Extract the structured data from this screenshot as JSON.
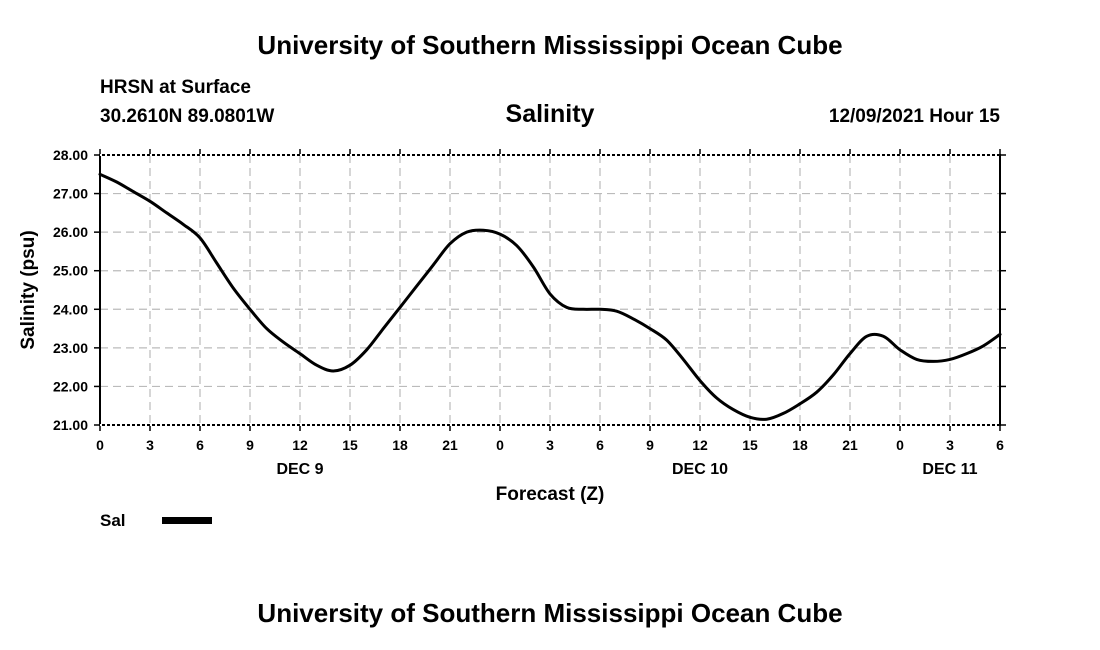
{
  "header": {
    "title": "University of Southern Mississippi Ocean Cube",
    "station": "HRSN at Surface",
    "coords": "30.2610N  89.0801W",
    "chart_title": "Salinity",
    "datetime": "12/09/2021 Hour 15"
  },
  "footer": {
    "title": "University of Southern Mississippi Ocean Cube"
  },
  "colors": {
    "line": "#000000",
    "grid": "#bbbbbb",
    "background": "#ffffff"
  },
  "chart_data": {
    "type": "line",
    "title": "Salinity",
    "xlabel": "Forecast (Z)",
    "ylabel": "Salinity (psu)",
    "ylim": [
      21.0,
      28.0
    ],
    "xlim": [
      0,
      54
    ],
    "y_ticks": [
      "21.00",
      "22.00",
      "23.00",
      "24.00",
      "25.00",
      "26.00",
      "27.00",
      "28.00"
    ],
    "x_tick_values": [
      0,
      3,
      6,
      9,
      12,
      15,
      18,
      21,
      24,
      27,
      30,
      33,
      36,
      39,
      42,
      45,
      48,
      51,
      54
    ],
    "x_tick_labels": [
      "0",
      "3",
      "6",
      "9",
      "12",
      "15",
      "18",
      "21",
      "0",
      "3",
      "6",
      "9",
      "12",
      "15",
      "18",
      "21",
      "0",
      "3",
      "6"
    ],
    "day_labels": [
      {
        "label": "DEC 9",
        "at": 12
      },
      {
        "label": "DEC 10",
        "at": 36
      },
      {
        "label": "DEC 11",
        "at": 51
      }
    ],
    "grid": true,
    "legend": [
      {
        "label": "Sal",
        "position": "bottom-left"
      }
    ],
    "series": [
      {
        "name": "Sal",
        "x": [
          0,
          1,
          2,
          3,
          4,
          5,
          6,
          7,
          8,
          9,
          10,
          11,
          12,
          13,
          14,
          15,
          16,
          17,
          18,
          19,
          20,
          21,
          22,
          23,
          24,
          25,
          26,
          27,
          28,
          29,
          30,
          31,
          32,
          33,
          34,
          35,
          36,
          37,
          38,
          39,
          40,
          41,
          42,
          43,
          44,
          45,
          46,
          47,
          48,
          49,
          50,
          51,
          52,
          53,
          54
        ],
        "values": [
          27.5,
          27.3,
          27.05,
          26.8,
          26.5,
          26.2,
          25.85,
          25.2,
          24.55,
          24.0,
          23.5,
          23.15,
          22.85,
          22.55,
          22.4,
          22.55,
          22.95,
          23.5,
          24.05,
          24.6,
          25.15,
          25.7,
          26.0,
          26.05,
          25.95,
          25.65,
          25.1,
          24.4,
          24.05,
          24.0,
          24.0,
          23.95,
          23.75,
          23.5,
          23.2,
          22.7,
          22.15,
          21.7,
          21.4,
          21.2,
          21.15,
          21.3,
          21.55,
          21.85,
          22.3,
          22.85,
          23.3,
          23.3,
          22.95,
          22.7,
          22.65,
          22.7,
          22.85,
          23.05,
          23.35
        ]
      }
    ]
  }
}
